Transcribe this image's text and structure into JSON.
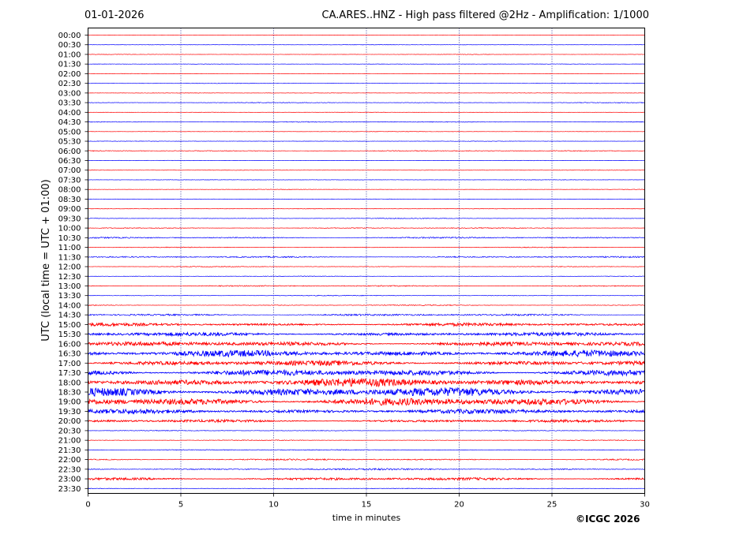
{
  "header": {
    "date": "01-01-2026",
    "title": "CA.ARES..HNZ - High pass filtered @2Hz - Amplification: 1/1000"
  },
  "footer": {
    "credit": "©ICGC 2026"
  },
  "colors": {
    "red_trace": "#ff0000",
    "blue_trace": "#0000ff",
    "frame": "#000000",
    "grid": "#000080"
  },
  "chart_data": {
    "type": "line",
    "xlabel": "time in minutes",
    "ylabel": "UTC (local time = UTC + 01:00)",
    "xlim": [
      0,
      30
    ],
    "x_ticks": [
      "0",
      "5",
      "10",
      "15",
      "20",
      "25",
      "30"
    ],
    "vertical_grid_at": [
      5,
      10,
      15,
      20,
      25
    ],
    "grid": "dotted vertical",
    "row_labels": [
      "00:00",
      "00:30",
      "01:00",
      "01:30",
      "02:00",
      "02:30",
      "03:00",
      "03:30",
      "04:00",
      "04:30",
      "05:00",
      "05:30",
      "06:00",
      "06:30",
      "07:00",
      "07:30",
      "08:00",
      "08:30",
      "09:00",
      "09:30",
      "10:00",
      "10:30",
      "11:00",
      "11:30",
      "12:00",
      "12:30",
      "13:00",
      "13:30",
      "14:00",
      "14:30",
      "15:00",
      "15:30",
      "16:00",
      "16:30",
      "17:00",
      "17:30",
      "18:00",
      "18:30",
      "19:00",
      "19:30",
      "20:00",
      "20:30",
      "21:00",
      "21:30",
      "22:00",
      "22:30",
      "23:00",
      "23:30"
    ],
    "row_colors": "alternating red (full hour) and blue (half hour)",
    "relative_amplitude": [
      0.3,
      0.3,
      0.3,
      0.3,
      0.3,
      0.3,
      0.3,
      0.5,
      0.3,
      0.6,
      0.3,
      0.3,
      0.6,
      0.3,
      0.3,
      0.3,
      0.3,
      0.3,
      0.4,
      0.5,
      0.6,
      1.0,
      0.5,
      1.0,
      0.5,
      0.4,
      0.8,
      0.5,
      0.6,
      1.4,
      2.0,
      2.4,
      3.0,
      4.2,
      3.4,
      4.2,
      5.5,
      6.0,
      5.2,
      3.0,
      1.8,
      0.5,
      0.5,
      0.6,
      1.0,
      1.2,
      1.8,
      0.4
    ]
  }
}
